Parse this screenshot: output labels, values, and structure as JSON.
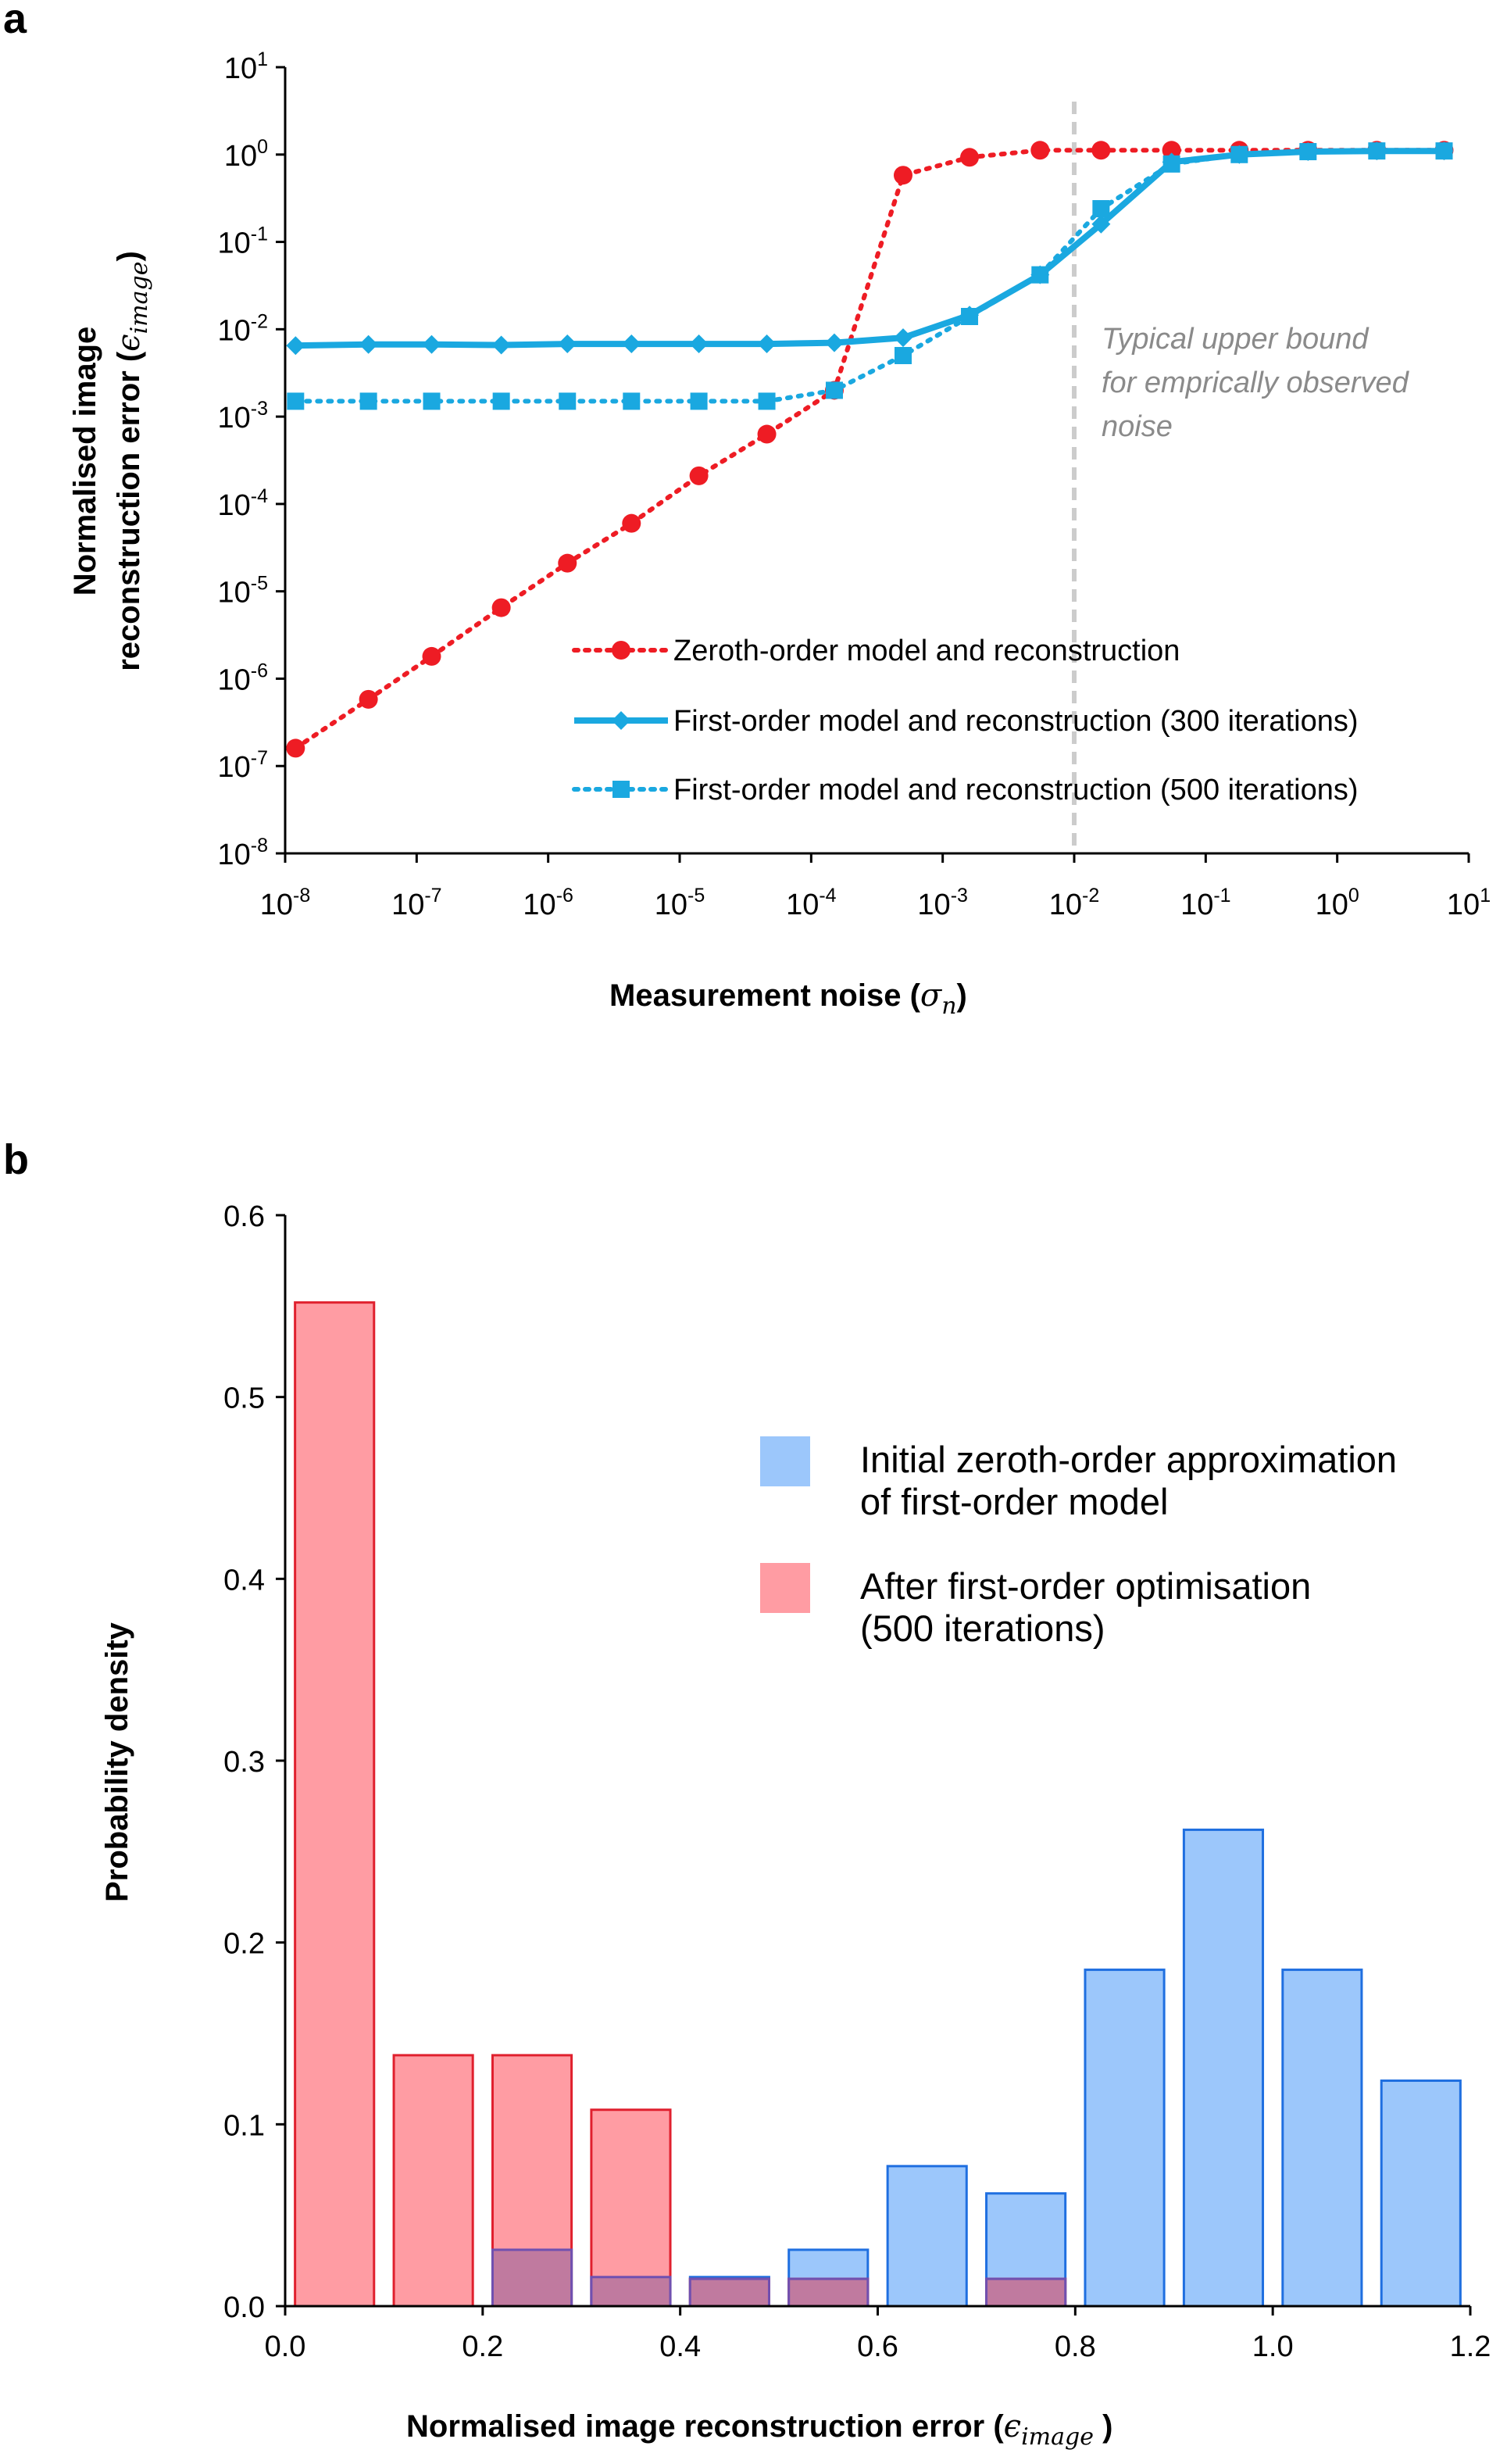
{
  "chart_data": [
    {
      "panel": "a",
      "type": "line",
      "title": "",
      "xlabel": "Measurement noise (",
      "xlabel_math": "σ",
      "xlabel_sub": "n",
      "xlabel_end": ")",
      "ylabel_line1": "Normalised image",
      "ylabel_line2": "reconstruction error (",
      "ylabel_math": "ϵ",
      "ylabel_sub": "image",
      "ylabel_end": ")",
      "x_scale": "log",
      "y_scale": "log",
      "xlim": [
        1e-08,
        10
      ],
      "ylim": [
        1e-08,
        10
      ],
      "x_ticks": [
        {
          "base": "10",
          "exp": "-8",
          "value": 1e-08
        },
        {
          "base": "10",
          "exp": "-7",
          "value": 1e-07
        },
        {
          "base": "10",
          "exp": "-6",
          "value": 1e-06
        },
        {
          "base": "10",
          "exp": "-5",
          "value": 1e-05
        },
        {
          "base": "10",
          "exp": "-4",
          "value": 0.0001
        },
        {
          "base": "10",
          "exp": "-3",
          "value": 0.001
        },
        {
          "base": "10",
          "exp": "-2",
          "value": 0.01
        },
        {
          "base": "10",
          "exp": "-1",
          "value": 0.1
        },
        {
          "base": "10",
          "exp": "0",
          "value": 1
        },
        {
          "base": "10",
          "exp": "1",
          "value": 10
        }
      ],
      "y_ticks": [
        {
          "base": "10",
          "exp": "1",
          "value": 10
        },
        {
          "base": "10",
          "exp": "0",
          "value": 1
        },
        {
          "base": "10",
          "exp": "-1",
          "value": 0.1
        },
        {
          "base": "10",
          "exp": "-2",
          "value": 0.01
        },
        {
          "base": "10",
          "exp": "-3",
          "value": 0.001
        },
        {
          "base": "10",
          "exp": "-4",
          "value": 0.0001
        },
        {
          "base": "10",
          "exp": "-5",
          "value": 1e-05
        },
        {
          "base": "10",
          "exp": "-6",
          "value": 1e-06
        },
        {
          "base": "10",
          "exp": "-7",
          "value": 1e-07
        },
        {
          "base": "10",
          "exp": "-8",
          "value": 1e-08
        }
      ],
      "x": [
        1.2e-08,
        4.3e-08,
        1.3e-07,
        4.4e-07,
        1.4e-06,
        4.3e-06,
        1.4e-05,
        4.6e-05,
        0.00015,
        0.0005,
        0.0016,
        0.0055,
        0.016,
        0.055,
        0.18,
        0.6,
        2.0,
        6.5
      ],
      "series": [
        {
          "name": "Zeroth-order model and reconstruction",
          "color": "#ee1c24",
          "style": "dotted",
          "marker": "circle",
          "values": [
            1.6e-07,
            5.8e-07,
            1.8e-06,
            6.5e-06,
            2.1e-05,
            6e-05,
            0.00021,
            0.00063,
            0.002,
            0.58,
            0.93,
            1.12,
            1.12,
            1.12,
            1.12,
            1.12,
            1.12,
            1.12
          ]
        },
        {
          "name": "First-order model and reconstruction (300 iterations)",
          "color": "#1aa8e0",
          "style": "solid",
          "marker": "diamond",
          "values": [
            0.0065,
            0.0067,
            0.0067,
            0.0066,
            0.0068,
            0.0068,
            0.0068,
            0.0068,
            0.007,
            0.008,
            0.0145,
            0.042,
            0.16,
            0.82,
            1.0,
            1.08,
            1.1,
            1.1
          ]
        },
        {
          "name": "First-order model and reconstruction (500 iterations)",
          "color": "#1aa8e0",
          "style": "dotted",
          "marker": "square",
          "values": [
            0.0015,
            0.0015,
            0.0015,
            0.0015,
            0.0015,
            0.0015,
            0.0015,
            0.0015,
            0.002,
            0.005,
            0.014,
            0.042,
            0.24,
            0.78,
            1.0,
            1.08,
            1.1,
            1.1
          ]
        }
      ],
      "reference_line": {
        "x": 0.01,
        "color": "#cccccc",
        "style": "dashed"
      },
      "annotation": [
        "Typical upper bound",
        "for emprically observed",
        "noise"
      ],
      "legend_position": "lower-right",
      "grid": false
    },
    {
      "panel": "b",
      "type": "bar",
      "title": "",
      "xlabel": "Normalised image reconstruction error (",
      "xlabel_math": "ϵ",
      "xlabel_sub": "image",
      "xlabel_end": " )",
      "ylabel": "Probability density",
      "xlim": [
        0,
        1.2
      ],
      "ylim": [
        0,
        0.6
      ],
      "x_ticks": [
        "0.0",
        "0.2",
        "0.4",
        "0.6",
        "0.8",
        "1.0",
        "1.2"
      ],
      "y_ticks": [
        "0.0",
        "0.1",
        "0.2",
        "0.3",
        "0.4",
        "0.5",
        "0.6"
      ],
      "bin_centers": [
        0.05,
        0.15,
        0.25,
        0.35,
        0.45,
        0.55,
        0.65,
        0.75,
        0.85,
        0.95,
        1.05,
        1.15
      ],
      "series": [
        {
          "name": "Initial zeroth-order approximation of first-order model",
          "legend_line1": "Initial zeroth-order approximation",
          "legend_line2": "of first-order model",
          "fill": "#9cc7fb",
          "stroke": "#1f6fe0",
          "values": [
            0,
            0,
            0.031,
            0.016,
            0.016,
            0.031,
            0.077,
            0.062,
            0.185,
            0.262,
            0.185,
            0.124
          ]
        },
        {
          "name": "After first-order optimisation (500 iterations)",
          "legend_line1": "After first-order optimisation",
          "legend_line2": "(500 iterations)",
          "fill": "#ff9ca3",
          "stroke": "#e0202e",
          "values": [
            0.552,
            0.138,
            0.138,
            0.108,
            0.015,
            0.015,
            0,
            0.015,
            0,
            0,
            0,
            0
          ]
        }
      ],
      "overlap_fill": "#c07a9f",
      "overlap_stroke": "#7050b0",
      "legend_position": "upper-right",
      "grid": false
    }
  ]
}
